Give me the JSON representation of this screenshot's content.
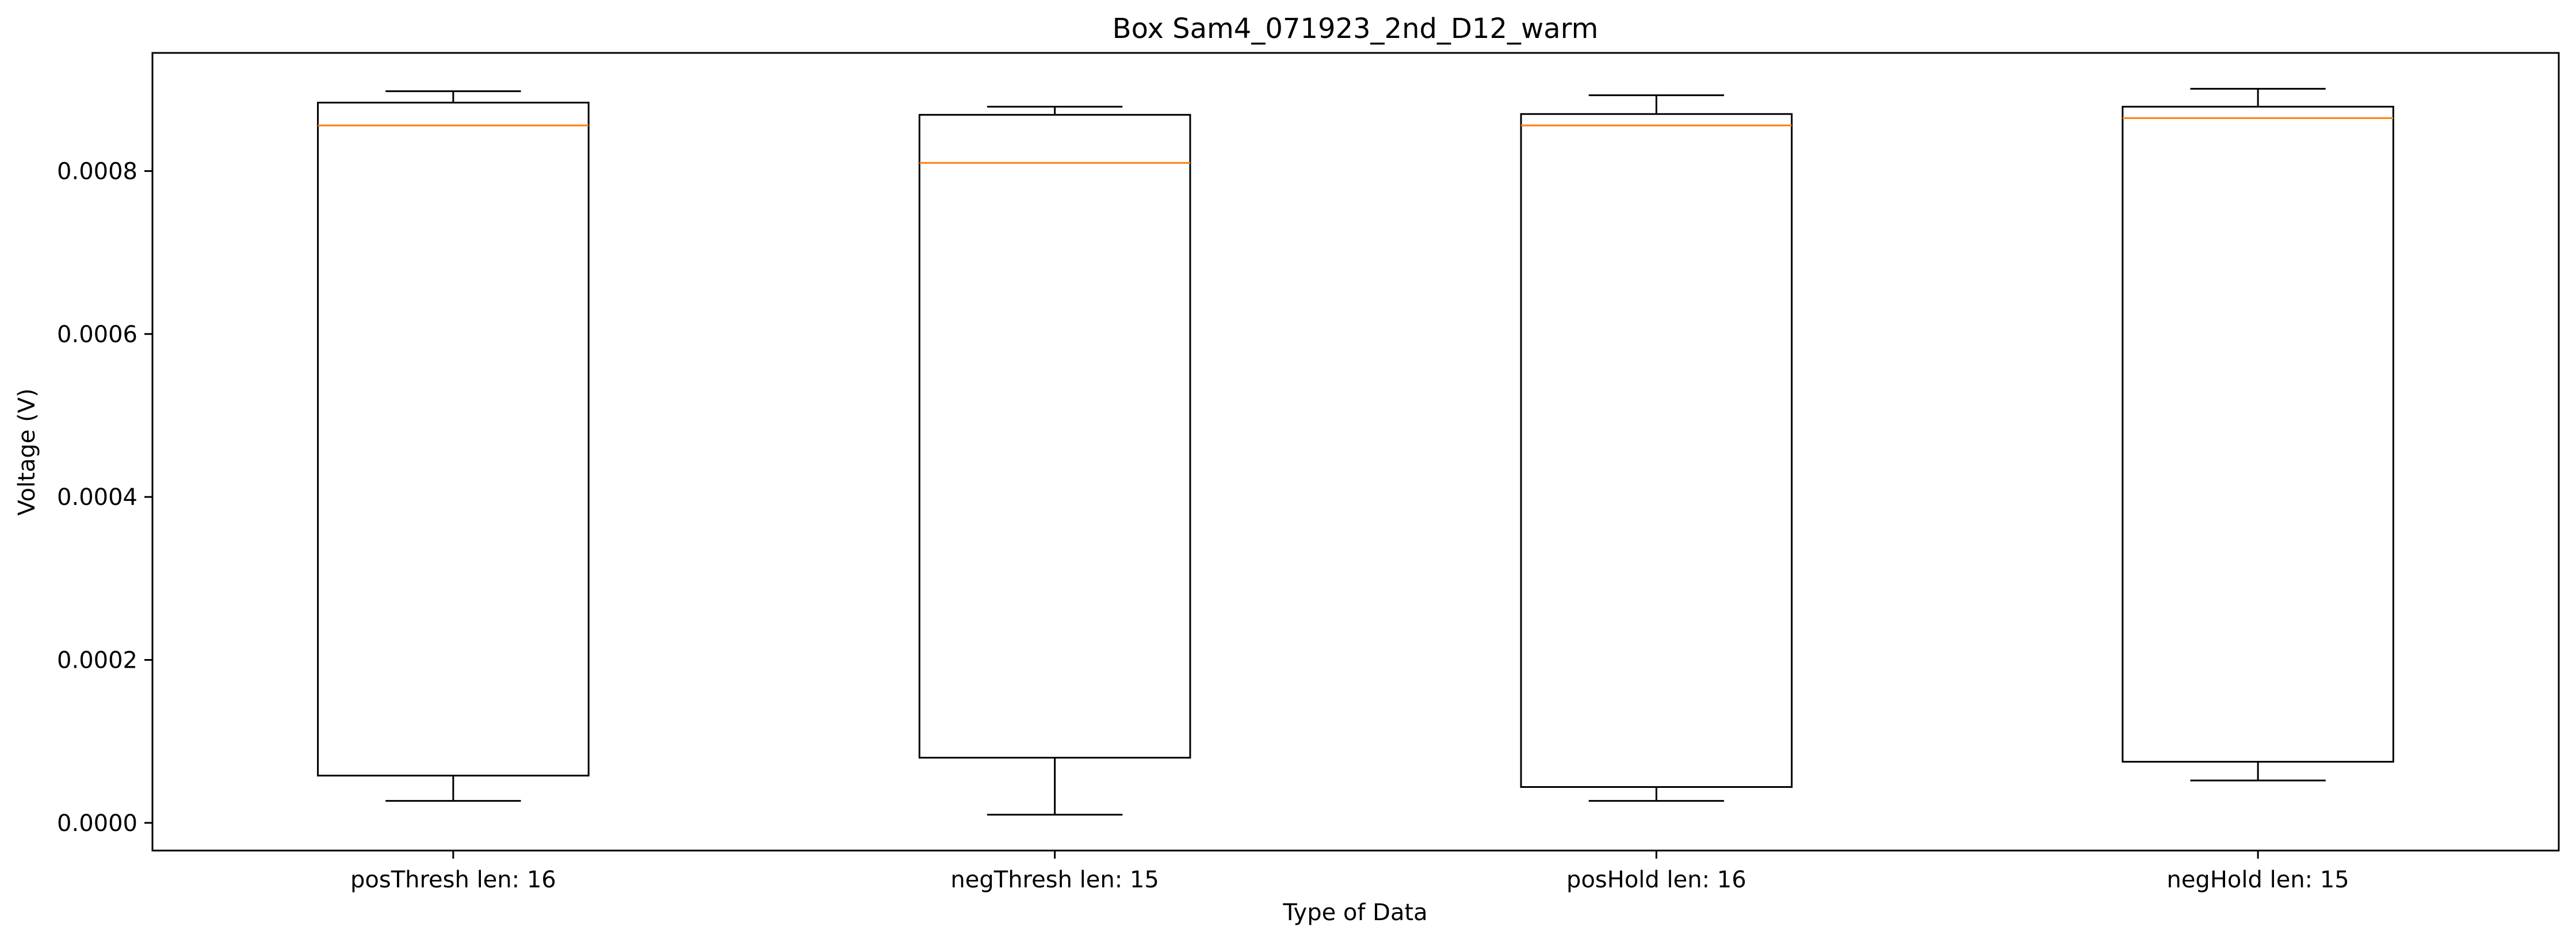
{
  "chart_data": {
    "type": "box",
    "title": "Box Sam4_071923_2nd_D12_warm",
    "xlabel": "Type of Data",
    "ylabel": "Voltage (V)",
    "ylim": [
      -3.4e-05,
      0.000945
    ],
    "yticks": [
      0.0,
      0.0002,
      0.0004,
      0.0006,
      0.0008
    ],
    "ytick_labels": [
      "0.0000",
      "0.0002",
      "0.0004",
      "0.0006",
      "0.0008"
    ],
    "grid": false,
    "categories": [
      "posThresh len: 16",
      "negThresh len: 15",
      "posHold len: 16",
      "negHold len: 15"
    ],
    "boxes": [
      {
        "whisker_low": 2.7e-05,
        "q1": 5.8e-05,
        "median": 0.000856,
        "q3": 0.000884,
        "whisker_high": 0.000898
      },
      {
        "whisker_low": 1e-05,
        "q1": 8e-05,
        "median": 0.00081,
        "q3": 0.000869,
        "whisker_high": 0.000879
      },
      {
        "whisker_low": 2.7e-05,
        "q1": 4.4e-05,
        "median": 0.000856,
        "q3": 0.00087,
        "whisker_high": 0.000893
      },
      {
        "whisker_low": 5.2e-05,
        "q1": 7.5e-05,
        "median": 0.000865,
        "q3": 0.000879,
        "whisker_high": 0.000901
      }
    ],
    "colors": {
      "box": "#000000",
      "median": "#ff7f0e"
    }
  }
}
